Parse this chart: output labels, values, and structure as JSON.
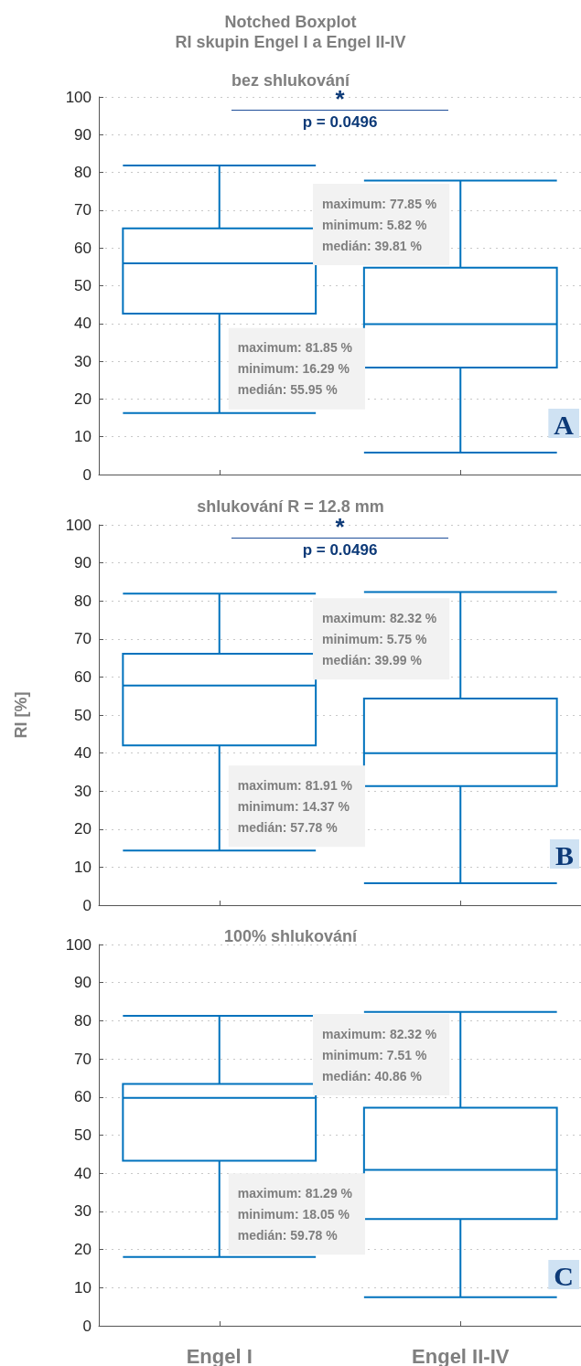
{
  "chart_data": [
    {
      "type": "box",
      "title": "Notched Boxplot\nRI skupin Engel I a Engel II-IV",
      "subtitle": "bez shlukování",
      "categories": [
        "Engel I",
        "Engel II-IV"
      ],
      "color": "#0072bd",
      "boxes": [
        {
          "low": 16.29,
          "q1": 42.6,
          "median": 55.95,
          "q3": 65.2,
          "high": 81.85
        },
        {
          "low": 5.82,
          "q1": 28.3,
          "median": 39.81,
          "q3": 54.8,
          "high": 77.85
        }
      ],
      "ylim": [
        0,
        100
      ],
      "yticks": [
        0,
        10,
        20,
        30,
        40,
        50,
        60,
        70,
        80,
        90,
        100
      ],
      "grid": "y",
      "tick_labels": "y",
      "annotations": [
        "*",
        "p = 0.0496",
        {
          "text": "maximum: 81.85 %\nminimum: 16.29 %\nmedián: 55.95 %",
          "x": "Engel I",
          "y": 28
        },
        {
          "text": "maximum: 77.85 %\nminimum: 5.82 %\nmedián: 39.81 %",
          "x": "Engel II-IV",
          "y": 66.2
        },
        "A"
      ]
    },
    {
      "type": "box",
      "title": "shlukování R = 12.8 mm",
      "ylabel": "RI [%]",
      "categories": [
        "Engel I",
        "Engel II-IV"
      ],
      "color": "#0072bd",
      "boxes": [
        {
          "low": 14.37,
          "q1": 42.0,
          "median": 57.78,
          "q3": 66.1,
          "high": 81.91
        },
        {
          "low": 5.75,
          "q1": 31.3,
          "median": 39.99,
          "q3": 54.3,
          "high": 82.32
        }
      ],
      "ylim": [
        0,
        100
      ],
      "yticks": [
        0,
        10,
        20,
        30,
        40,
        50,
        60,
        70,
        80,
        90,
        100
      ],
      "grid": "y",
      "tick_labels": "y",
      "annotations": [
        "*",
        "p = 0.0496",
        {
          "text": "maximum: 81.91 %\nminimum: 14.37 %\nmedián: 57.78 %",
          "x": "Engel I",
          "y": 26
        },
        {
          "text": "maximum: 82.32 %\nminimum: 5.75 %\nmedián: 39.99 %",
          "x": "Engel II-IV",
          "y": 70
        },
        "B"
      ]
    },
    {
      "type": "box",
      "title": "100% shlukování",
      "categories": [
        "Engel I",
        "Engel II-IV"
      ],
      "color": "#0072bd",
      "boxes": [
        {
          "low": 18.05,
          "q1": 43.3,
          "median": 59.78,
          "q3": 63.4,
          "high": 81.29
        },
        {
          "low": 7.51,
          "q1": 28.0,
          "median": 40.86,
          "q3": 57.2,
          "high": 82.32
        }
      ],
      "ylim": [
        0,
        100
      ],
      "yticks": [
        0,
        10,
        20,
        30,
        40,
        50,
        60,
        70,
        80,
        90,
        100
      ],
      "grid": "y",
      "annotations": [
        {
          "text": "maximum: 81.29 %\nminimum: 18.05 %\nmedián: 59.78 %",
          "x": "Engel I",
          "y": 29.3
        },
        {
          "text": "maximum: 82.32 %\nminimum: 7.51 %\nmedián: 40.86 %",
          "x": "Engel II-IV",
          "y": 71.1
        },
        "C"
      ]
    }
  ]
}
